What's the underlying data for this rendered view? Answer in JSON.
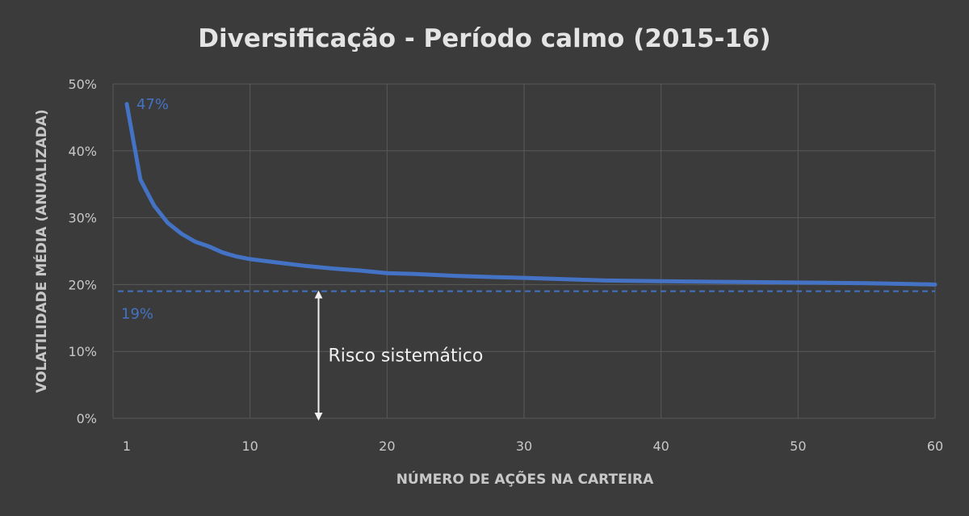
{
  "chart_data": {
    "type": "line",
    "title": "Diversificação - Período calmo (2015-16)",
    "xlabel": "NÚMERO DE AÇÕES NA CARTEIRA",
    "ylabel": "VOLATILIDADE MÉDIA (ANUALIZADA)",
    "xlim": [
      0,
      60
    ],
    "ylim": [
      0,
      50
    ],
    "x_ticks": [
      1,
      10,
      20,
      30,
      40,
      50,
      60
    ],
    "y_ticks": [
      0,
      10,
      20,
      30,
      40,
      50
    ],
    "y_tick_labels": [
      "0%",
      "10%",
      "20%",
      "30%",
      "40%",
      "50%"
    ],
    "grid": true,
    "series": [
      {
        "color": "#4472c4",
        "x": [
          1,
          2,
          3,
          4,
          5,
          6,
          7,
          8,
          9,
          10,
          12,
          14,
          16,
          18,
          20,
          22,
          25,
          28,
          30,
          33,
          36,
          40,
          45,
          50,
          55,
          58,
          60
        ],
        "values": [
          47,
          35.7,
          31.8,
          29.2,
          27.6,
          26.4,
          25.7,
          24.8,
          24.2,
          23.8,
          23.3,
          22.8,
          22.4,
          22.1,
          21.7,
          21.6,
          21.3,
          21.1,
          21.0,
          20.8,
          20.6,
          20.5,
          20.4,
          20.3,
          20.2,
          20.1,
          20.0
        ]
      }
    ],
    "reference_line": {
      "value": 19,
      "color": "#4472c4",
      "style": "dashed"
    },
    "annotations": {
      "start_label": "47%",
      "ref_label": "19%",
      "arrow_x": 15,
      "arrow_text": "Risco sistemático"
    }
  }
}
